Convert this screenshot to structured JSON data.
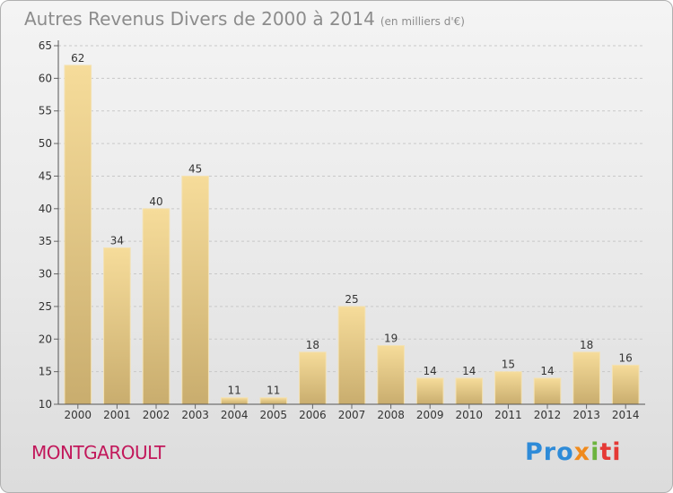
{
  "header": {
    "title": "Autres Revenus Divers de 2000 à 2014",
    "unit": "(en milliers d'€)"
  },
  "footer": {
    "commune": "MONTGAROULT",
    "logo_parts": [
      "Pro",
      "x",
      "i",
      "ti"
    ]
  },
  "colors": {
    "bar_top": "#f6dc9a",
    "bar_bottom": "#c9ad6e",
    "grid": "#c8c8c8",
    "axis_text": "#333333",
    "title": "#8c8c8c",
    "commune": "#c2185b"
  },
  "chart_data": {
    "type": "bar",
    "title": "Autres Revenus Divers de 2000 à 2014",
    "subtitle": "(en milliers d'€)",
    "xlabel": "",
    "ylabel": "",
    "categories": [
      "2000",
      "2001",
      "2002",
      "2003",
      "2004",
      "2005",
      "2006",
      "2007",
      "2008",
      "2009",
      "2010",
      "2011",
      "2012",
      "2013",
      "2014"
    ],
    "values": [
      62,
      34,
      40,
      45,
      11,
      11,
      18,
      25,
      19,
      14,
      14,
      15,
      14,
      18,
      16
    ],
    "ylim": [
      10,
      65
    ],
    "yticks": [
      10,
      15,
      20,
      25,
      30,
      35,
      40,
      45,
      50,
      55,
      60,
      65
    ],
    "grid": "horizontal dashed",
    "legend": "none"
  }
}
